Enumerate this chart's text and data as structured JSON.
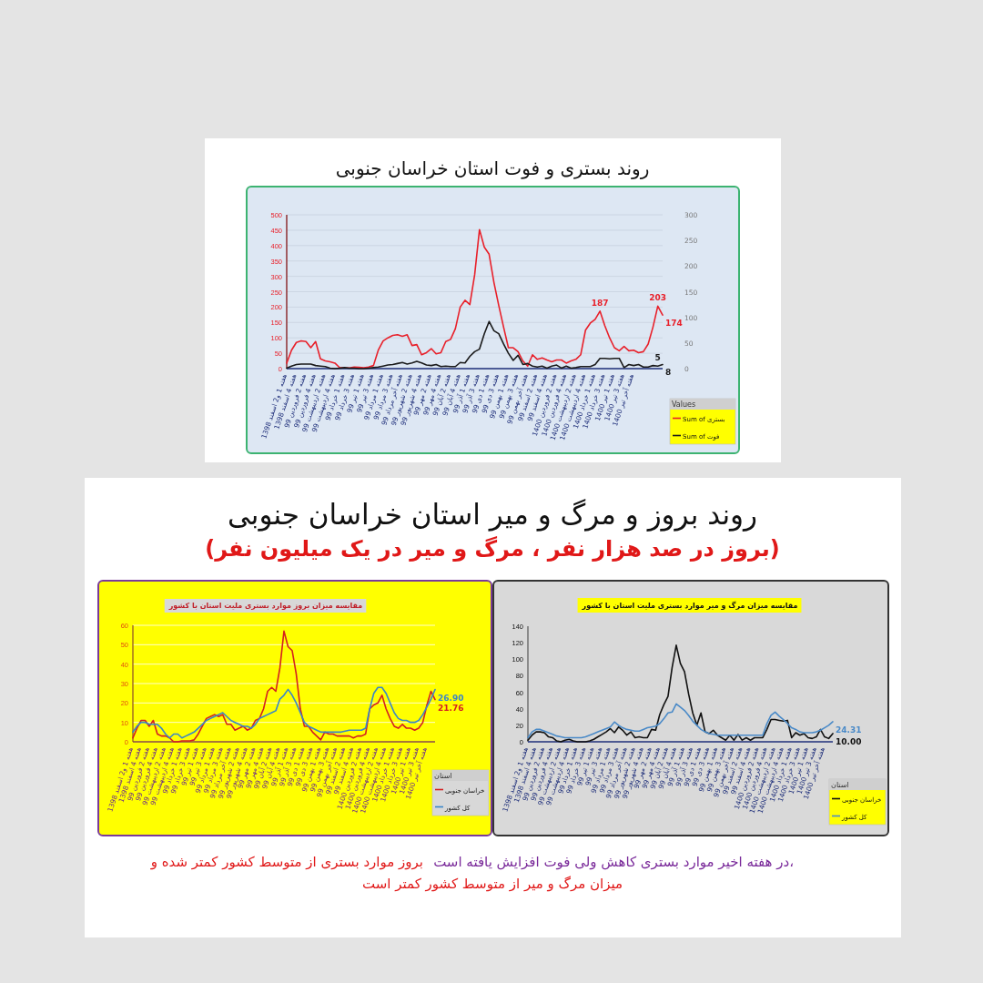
{
  "chart_data": [
    {
      "type": "line",
      "title": "روند بستری و فوت استان خراسان جنوبی",
      "categories": [
        "هفته 1 و2 اسفند 1398",
        null,
        "هفته 4 اسفند 1398",
        null,
        "هفته 2 فروردین 99",
        null,
        "هفته 4 فروردین 99",
        null,
        "هفته 2 اردیبهشت 99",
        null,
        "هفته 4 اردیبهشت 99",
        null,
        "هفته 1 خرداد 99",
        null,
        "هفته 3 خرداد 99",
        null,
        "هفته 1 تیر 99",
        null,
        "هفته 3 تیر 99",
        null,
        "هفته 1 مرداد 99",
        null,
        "هفته 3 مرداد 99",
        null,
        "هفته آخر مرداد 99",
        null,
        "هفته 2 شهریور 99",
        null,
        "هفته 4 شهریور 99",
        null,
        "هفته 2 مهر 99",
        null,
        "هفته 4 مهر 99",
        null,
        "هفته 2 آبان 99",
        null,
        "هفته 4 آبان 99",
        null,
        "هفته 1 آذر 99",
        null,
        "هفته 3 آذر 99",
        null,
        "هفته 1 دی 99",
        null,
        "هفته 3 دی 99",
        null,
        "هفته 1 بهمن 99",
        null,
        "هفته 3 بهمن 99",
        null,
        "هفته آخر بهمن 99",
        null,
        "هفته 2 اسفند 99",
        null,
        "هفته 4 اسفند 99",
        null,
        "هفته 2 فروردین 1400",
        null,
        "هفته 4 فروردین 1400",
        null,
        "هفته 2 اردیبهشت 1400",
        null,
        "هفته 4 اردیبهشت 1400",
        null,
        "هفته 1 خرداد 1400",
        null,
        "هفته 3 خرداد 1400",
        null,
        "هفته 1 تیر 1400",
        null,
        "هفته 3 تیر 1400",
        null,
        "هفته آخر تیر 1400",
        null,
        null,
        null,
        null,
        null,
        null
      ],
      "series": [
        {
          "name": "Sum of بستری",
          "color": "#e8202a",
          "values": [
            18,
            60,
            85,
            90,
            88,
            68,
            88,
            32,
            25,
            22,
            18,
            3,
            3,
            2,
            5,
            4,
            3,
            5,
            10,
            60,
            90,
            100,
            108,
            110,
            105,
            110,
            75,
            78,
            45,
            52,
            65,
            48,
            52,
            88,
            95,
            130,
            200,
            222,
            208,
            305,
            452,
            395,
            372,
            280,
            205,
            135,
            68,
            68,
            55,
            25,
            8,
            45,
            30,
            35,
            28,
            22,
            28,
            28,
            18,
            25,
            30,
            45,
            125,
            148,
            160,
            187,
            140,
            100,
            68,
            58,
            72,
            58,
            60,
            52,
            55,
            80,
            135,
            203,
            174
          ],
          "value_labels": [
            null,
            null,
            null,
            null,
            null,
            null,
            null,
            null,
            null,
            null,
            null,
            null,
            null,
            null,
            null,
            null,
            null,
            null,
            null,
            null,
            null,
            null,
            null,
            null,
            null,
            null,
            null,
            null,
            null,
            null,
            null,
            null,
            null,
            null,
            null,
            null,
            null,
            null,
            null,
            null,
            null,
            null,
            null,
            null,
            null,
            null,
            null,
            null,
            null,
            null,
            null,
            null,
            null,
            null,
            null,
            null,
            null,
            null,
            null,
            null,
            null,
            null,
            null,
            null,
            null,
            "187",
            null,
            null,
            null,
            null,
            null,
            null,
            null,
            null,
            null,
            null,
            null,
            "203",
            "174"
          ]
        },
        {
          "name": "Sum of فوت",
          "color": "#1a1a1a",
          "axis": "y2",
          "values": [
            1,
            5,
            8,
            9,
            9,
            9,
            6,
            5,
            4,
            1,
            0,
            1,
            2,
            1,
            1,
            0,
            0,
            1,
            2,
            3,
            5,
            7,
            8,
            10,
            12,
            9,
            11,
            14,
            11,
            7,
            6,
            8,
            4,
            5,
            4,
            4,
            12,
            11,
            24,
            33,
            38,
            68,
            92,
            74,
            68,
            48,
            30,
            16,
            26,
            8,
            10,
            5,
            3,
            5,
            1,
            5,
            7,
            1,
            5,
            1,
            2,
            4,
            4,
            4,
            8,
            20,
            20,
            19,
            20,
            20,
            2,
            8,
            6,
            8,
            3,
            3,
            6,
            5,
            8
          ],
          "value_labels": [
            null,
            null,
            null,
            null,
            null,
            null,
            null,
            null,
            null,
            null,
            null,
            null,
            null,
            null,
            null,
            null,
            null,
            null,
            null,
            null,
            null,
            null,
            null,
            null,
            null,
            null,
            null,
            null,
            null,
            null,
            null,
            null,
            null,
            null,
            null,
            null,
            null,
            null,
            null,
            null,
            null,
            null,
            null,
            null,
            null,
            null,
            null,
            null,
            null,
            null,
            null,
            null,
            null,
            null,
            null,
            null,
            null,
            null,
            null,
            null,
            null,
            null,
            null,
            null,
            null,
            null,
            null,
            null,
            null,
            null,
            null,
            null,
            null,
            null,
            null,
            null,
            null,
            "5",
            "8"
          ]
        }
      ],
      "ylim": [
        0,
        500
      ],
      "yticks": [
        0,
        50,
        100,
        150,
        200,
        250,
        300,
        350,
        400,
        450,
        500
      ],
      "y2lim": [
        0,
        300
      ],
      "y2ticks": [
        0,
        50,
        100,
        150,
        200,
        250,
        300
      ],
      "grid": "y",
      "legend": "right",
      "legend_title": "Values"
    },
    {
      "type": "line",
      "title": "مقایسه میزان بروز موارد بستری ملیت استان با کشور",
      "categories": [
        "هفته 1 و2 اسفند 1398",
        null,
        "هفته 4 اسفند 1398",
        null,
        "هفته 2 فروردین 99",
        null,
        "هفته 4 فروردین 99",
        null,
        "هفته 2 اردیبهشت 99",
        null,
        "هفته 4 اردیبهشت 99",
        null,
        "هفته 1 خرداد 99",
        null,
        "هفته 3 خرداد 99",
        null,
        "هفته 1 تیر 99",
        null,
        "هفته 3 تیر 99",
        null,
        "هفته 1 مرداد 99",
        null,
        "هفته 3 مرداد 99",
        null,
        "هفته آخر مرداد 99",
        null,
        "هفته 2 شهریور 99",
        null,
        "هفته 4 شهریور 99",
        null,
        "هفته 2 مهر 99",
        null,
        "هفته 4 مهر 99",
        null,
        "هفته 2 آبان 99",
        null,
        "هفته 4 آبان 99",
        null,
        "هفته 1 آذر 99",
        null,
        "هفته 3 آذر 99",
        null,
        "هفته 1 دی 99",
        null,
        "هفته 3 دی 99",
        null,
        "هفته 1 بهمن 99",
        null,
        "هفته 3 بهمن 99",
        null,
        "هفته آخر بهمن 99",
        null,
        "هفته 2 اسفند 99",
        null,
        "هفته 4 اسفند 99",
        null,
        "هفته 2 فروردین 1400",
        null,
        "هفته 4 فروردین 1400",
        null,
        "هفته 2 اردیبهشت 1400",
        null,
        "هفته 4 اردیبهشت 1400",
        null,
        "هفته 1 خرداد 1400",
        null,
        "هفته 3 خرداد 1400",
        null,
        "هفته 1 تیر 1400",
        null,
        "هفته 3 تیر 1400",
        null,
        "هفته آخر تیر 1400",
        null,
        null
      ],
      "series": [
        {
          "name": "خراسان جنوبی",
          "color": "#d42020",
          "values": [
            2,
            7,
            11,
            11,
            8,
            11,
            4,
            3,
            3,
            2,
            0,
            0,
            0.5,
            0.5,
            0.5,
            1,
            4,
            8,
            12,
            13,
            14,
            13,
            14,
            9,
            9,
            6,
            7,
            8,
            6,
            7,
            11,
            12,
            17,
            26,
            28,
            26,
            38,
            57,
            49,
            47,
            35,
            17,
            8,
            8,
            5,
            3,
            1,
            5,
            4,
            4,
            3,
            3,
            3,
            3,
            2,
            3,
            3,
            4,
            17,
            19,
            20,
            24,
            17,
            12,
            8,
            7,
            9,
            7,
            7,
            6,
            7,
            10,
            19,
            26,
            21.76
          ],
          "value_labels": [
            null,
            null,
            null,
            null,
            null,
            null,
            null,
            null,
            null,
            null,
            null,
            null,
            null,
            null,
            null,
            null,
            null,
            null,
            null,
            null,
            null,
            null,
            null,
            null,
            null,
            null,
            null,
            null,
            null,
            null,
            null,
            null,
            null,
            null,
            null,
            null,
            null,
            null,
            null,
            null,
            null,
            null,
            null,
            null,
            null,
            null,
            null,
            null,
            null,
            null,
            null,
            null,
            null,
            null,
            null,
            null,
            null,
            null,
            null,
            null,
            null,
            null,
            null,
            null,
            null,
            null,
            null,
            null,
            null,
            null,
            null,
            null,
            null,
            null,
            "21.76"
          ]
        },
        {
          "name": "کل کشور",
          "color": "#3a86c8",
          "values": [
            5,
            8,
            10,
            10,
            9,
            9,
            9,
            7,
            4,
            2,
            4,
            4,
            2,
            3,
            4,
            5,
            7,
            9,
            11,
            12,
            13,
            14,
            15,
            13,
            11,
            10,
            9,
            8,
            8,
            7,
            9,
            12,
            13,
            14,
            15,
            16,
            22,
            24,
            27,
            24,
            20,
            15,
            10,
            8,
            7,
            6,
            5,
            5,
            5,
            5,
            5,
            5,
            5.5,
            6,
            6,
            6,
            6,
            7,
            17,
            25,
            28,
            28,
            25,
            20,
            15,
            12,
            11,
            11,
            10,
            10,
            11,
            14,
            18,
            22,
            26.9
          ],
          "value_labels": [
            null,
            null,
            null,
            null,
            null,
            null,
            null,
            null,
            null,
            null,
            null,
            null,
            null,
            null,
            null,
            null,
            null,
            null,
            null,
            null,
            null,
            null,
            null,
            null,
            null,
            null,
            null,
            null,
            null,
            null,
            null,
            null,
            null,
            null,
            null,
            null,
            null,
            null,
            null,
            null,
            null,
            null,
            null,
            null,
            null,
            null,
            null,
            null,
            null,
            null,
            null,
            null,
            null,
            null,
            null,
            null,
            null,
            null,
            null,
            null,
            null,
            null,
            null,
            null,
            null,
            null,
            null,
            null,
            null,
            null,
            null,
            null,
            null,
            null,
            "26.90"
          ]
        }
      ],
      "ylim": [
        0,
        60
      ],
      "yticks": [
        0,
        10,
        20,
        30,
        40,
        50,
        60
      ],
      "grid": "y",
      "legend": "right",
      "legend_title": "استان",
      "annotations": [
        "روند بروز و مرگ و میر استان خراسان جنوبی",
        "(بروز در صد هزار نفر ، مرگ و میر در یک میلیون نفر)"
      ]
    },
    {
      "type": "line",
      "title": "مقایسه میزان مرگ و میر موارد بستری ملیت استان با کشور",
      "categories": [
        "هفته 1 و2 اسفند 1398",
        null,
        "هفته 4 اسفند 1398",
        null,
        "هفته 2 فروردین 99",
        null,
        "هفته 4 فروردین 99",
        null,
        "هفته 2 اردیبهشت 99",
        null,
        "هفته 4 اردیبهشت 99",
        null,
        "هفته 1 خرداد 99",
        null,
        "هفته 3 خرداد 99",
        null,
        "هفته 1 تیر 99",
        null,
        "هفته 3 تیر 99",
        null,
        "هفته 1 مرداد 99",
        null,
        "هفته 3 مرداد 99",
        null,
        "هفته آخر مرداد 99",
        null,
        "هفته 2 شهریور 99",
        null,
        "هفته 4 شهریور 99",
        null,
        "هفته 2 مهر 99",
        null,
        "هفته 4 مهر 99",
        null,
        "هفته 2 آبان 99",
        null,
        "هفته 4 آبان 99",
        null,
        "هفته 1 آذر 99",
        null,
        "هفته 3 آذر 99",
        null,
        "هفته 1 دی 99",
        null,
        "هفته 3 دی 99",
        null,
        "هفته 1 بهمن 99",
        null,
        "هفته 3 بهمن 99",
        null,
        "هفته آخر بهمن 99",
        null,
        "هفته 2 اسفند 99",
        null,
        "هفته 4 اسفند 99",
        null,
        "هفته 2 فروردین 1400",
        null,
        "هفته 4 فروردین 1400",
        null,
        "هفته 2 اردیبهشت 1400",
        null,
        "هفته 4 اردیبهشت 1400",
        null,
        "هفته 1 خرداد 1400",
        null,
        "هفته 3 خرداد 1400",
        null,
        "هفته 1 تیر 1400",
        null,
        "هفته 3 تیر 1400",
        null,
        "هفته آخر تیر 1400",
        null,
        null
      ],
      "series": [
        {
          "name": "خراسان جنوبی",
          "color": "#111111",
          "values": [
            2,
            8,
            12,
            12,
            11,
            6,
            5,
            1,
            0,
            2,
            3,
            1,
            0,
            0,
            0,
            1,
            3,
            6,
            9,
            12,
            16,
            11,
            18,
            14,
            8,
            12,
            5,
            6,
            5,
            5,
            15,
            14,
            33,
            45,
            55,
            90,
            117,
            95,
            85,
            58,
            35,
            20,
            35,
            12,
            10,
            14,
            8,
            5,
            2,
            8,
            2,
            9,
            2,
            5,
            2,
            5,
            5,
            5,
            15,
            27,
            27,
            26,
            25,
            26,
            5,
            11,
            8,
            10,
            5,
            4,
            6,
            15,
            6,
            4,
            10
          ],
          "value_labels": [
            null,
            null,
            null,
            null,
            null,
            null,
            null,
            null,
            null,
            null,
            null,
            null,
            null,
            null,
            null,
            null,
            null,
            null,
            null,
            null,
            null,
            null,
            null,
            null,
            null,
            null,
            null,
            null,
            null,
            null,
            null,
            null,
            null,
            null,
            null,
            null,
            null,
            null,
            null,
            null,
            null,
            null,
            null,
            null,
            null,
            null,
            null,
            null,
            null,
            null,
            null,
            null,
            null,
            null,
            null,
            null,
            null,
            null,
            null,
            null,
            null,
            null,
            null,
            null,
            null,
            null,
            null,
            null,
            null,
            null,
            null,
            null,
            null,
            null,
            "10.00"
          ]
        },
        {
          "name": "کل کشور",
          "color": "#4a8ac8",
          "values": [
            5,
            12,
            15,
            15,
            13,
            11,
            9,
            7,
            6,
            5,
            5,
            5,
            5,
            5,
            6,
            8,
            10,
            12,
            14,
            16,
            18,
            24,
            20,
            17,
            15,
            14,
            13,
            13,
            15,
            17,
            18,
            19,
            22,
            28,
            35,
            36,
            46,
            42,
            38,
            32,
            25,
            20,
            15,
            12,
            10,
            9,
            8,
            8,
            8,
            8,
            8,
            8,
            8,
            8,
            8,
            8,
            8,
            8,
            22,
            32,
            36,
            31,
            27,
            22,
            17,
            15,
            12,
            11,
            11,
            11,
            12,
            14,
            17,
            20,
            24.31
          ],
          "value_labels": [
            null,
            null,
            null,
            null,
            null,
            null,
            null,
            null,
            null,
            null,
            null,
            null,
            null,
            null,
            null,
            null,
            null,
            null,
            null,
            null,
            null,
            null,
            null,
            null,
            null,
            null,
            null,
            null,
            null,
            null,
            null,
            null,
            null,
            null,
            null,
            null,
            null,
            null,
            null,
            null,
            null,
            null,
            null,
            null,
            null,
            null,
            null,
            null,
            null,
            null,
            null,
            null,
            null,
            null,
            null,
            null,
            null,
            null,
            null,
            null,
            null,
            null,
            null,
            null,
            null,
            null,
            null,
            null,
            null,
            null,
            null,
            null,
            null,
            null,
            "24.31"
          ]
        }
      ],
      "ylim": [
        0,
        140
      ],
      "yticks": [
        0,
        20,
        40,
        60,
        80,
        100,
        120,
        140
      ],
      "legend": "right",
      "legend_title": "استان",
      "annotations": [
        "در هفته اخیر موارد بستری کاهش ولی فوت افزایش یافته است،",
        "بروز موارد بستری از متوسط کشور کمتر شده و",
        "میزان مرگ و میر از متوسط کشور کمتر است"
      ]
    }
  ]
}
